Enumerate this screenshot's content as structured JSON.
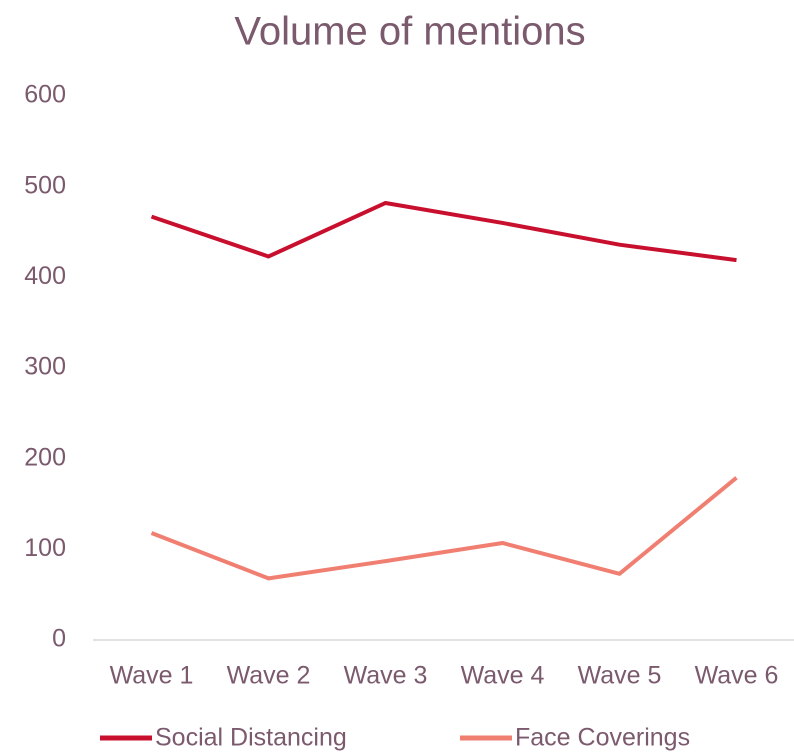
{
  "chart_data": {
    "type": "line",
    "title": "Volume of mentions",
    "categories": [
      "Wave 1",
      "Wave 2",
      "Wave 3",
      "Wave 4",
      "Wave 5",
      "Wave 6"
    ],
    "series": [
      {
        "name": "Social Distancing",
        "color": "#c8102e",
        "values": [
          467,
          423,
          482,
          460,
          436,
          419
        ]
      },
      {
        "name": "Face Coverings",
        "color": "#f07f72",
        "values": [
          118,
          68,
          87,
          107,
          73,
          179
        ]
      }
    ],
    "ylim": [
      0,
      600
    ],
    "yticks": [
      0,
      100,
      200,
      300,
      400,
      500,
      600
    ],
    "grid": false,
    "legend": "bottom"
  }
}
